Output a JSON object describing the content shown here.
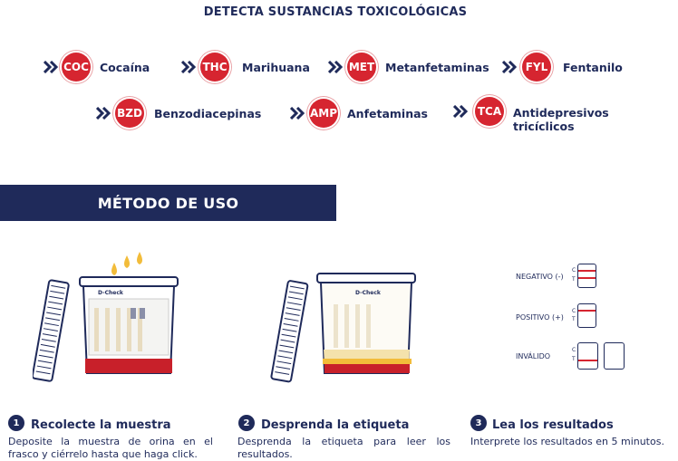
{
  "header": {
    "title": "DETECTA SUSTANCIAS TOXICOLÓGICAS"
  },
  "substances": [
    {
      "code": "COC",
      "name": "Cocaína"
    },
    {
      "code": "THC",
      "name": "Marihuana"
    },
    {
      "code": "MET",
      "name": "Metanfetaminas"
    },
    {
      "code": "FYL",
      "name": "Fentanilo"
    },
    {
      "code": "BZD",
      "name": "Benzodiacepinas"
    },
    {
      "code": "AMP",
      "name": "Anfetaminas"
    },
    {
      "code": "TCA",
      "name": "Antidepresivos tricíclicos"
    }
  ],
  "method": {
    "title": "MÉTODO DE USO"
  },
  "cup": {
    "brand": "D-Check"
  },
  "results": {
    "control": "C",
    "test": "T",
    "labels": [
      "NEGATIVO (-)",
      "POSITIVO (+)",
      "INVÁLIDO"
    ]
  },
  "steps": [
    {
      "number": "1",
      "title": "Recolecte la muestra",
      "description": "Deposite la muestra de orina en el frasco y ciérrelo hasta que haga click."
    },
    {
      "number": "2",
      "title": "Desprenda la etiqueta",
      "description": "Desprenda la etiqueta para leer los resultados."
    },
    {
      "number": "3",
      "title": "Lea los resultados",
      "description": "Interprete los resultados en 5 minutos."
    }
  ]
}
